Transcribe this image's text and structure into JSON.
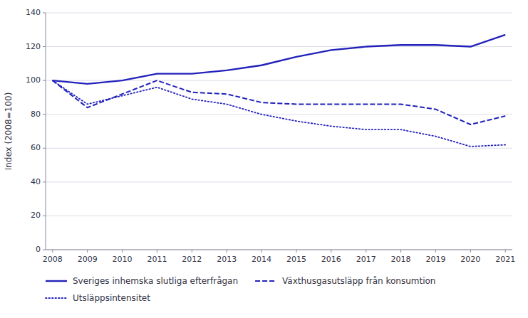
{
  "chart_data": {
    "type": "line",
    "y_label": "Index (2008=100)",
    "x": [
      2008,
      2009,
      2010,
      2011,
      2012,
      2013,
      2014,
      2015,
      2016,
      2017,
      2018,
      2019,
      2020,
      2021
    ],
    "xlim": [
      2007.8,
      2021.2
    ],
    "xticks": [
      2008,
      2009,
      2010,
      2011,
      2012,
      2013,
      2014,
      2015,
      2016,
      2017,
      2018,
      2019,
      2020,
      2021
    ],
    "ylim": [
      0,
      140
    ],
    "yticks": [
      0,
      20,
      40,
      60,
      80,
      100,
      120,
      140
    ],
    "grid": true,
    "legend": "bottom",
    "series": [
      {
        "name": "Sveriges inhemska slutliga efterfrågan",
        "color": "#2222bb",
        "line_style": "solid",
        "values": [
          100,
          98,
          100,
          104,
          104,
          106,
          109,
          114,
          118,
          120,
          121,
          121,
          120,
          127
        ]
      },
      {
        "name": "Växthusgasutsläpp från konsumtion",
        "color": "#2222bb",
        "line_style": "dashed",
        "values": [
          100,
          84,
          92,
          100,
          93,
          92,
          87,
          86,
          86,
          86,
          86,
          83,
          74,
          79
        ]
      },
      {
        "name": "Utsläppsintensitet",
        "color": "#2222bb",
        "line_style": "dotted",
        "values": [
          100,
          86,
          91,
          96,
          89,
          86,
          80,
          76,
          73,
          71,
          71,
          67,
          61,
          62
        ]
      }
    ]
  }
}
